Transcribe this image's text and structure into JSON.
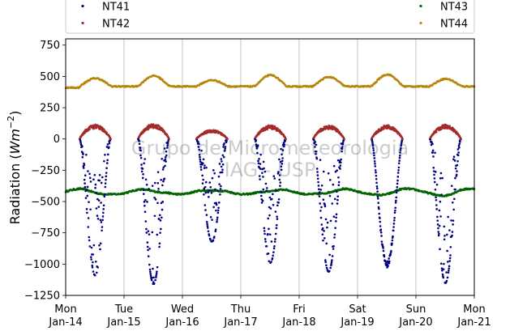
{
  "chart_data": {
    "type": "scatter",
    "ylabel": "Radiation (Wm⁻²)",
    "ylabel_parts": {
      "text": "Radiation (",
      "math": "Wm",
      "exp": "−2",
      "close": ")"
    },
    "ylim": [
      -1250,
      800
    ],
    "yticks": [
      -1250,
      -1000,
      -750,
      -500,
      -250,
      0,
      250,
      500,
      750
    ],
    "ytick_labels": [
      "−1250",
      "−1000",
      "−750",
      "−500",
      "−250",
      "0",
      "250",
      "500",
      "750"
    ],
    "xlim": [
      "2019-01-14",
      "2019-01-21"
    ],
    "xticks": [
      {
        "day": "Mon",
        "date": "Jan-14"
      },
      {
        "day": "Tue",
        "date": "Jan-15"
      },
      {
        "day": "Wed",
        "date": "Jan-16"
      },
      {
        "day": "Thu",
        "date": "Jan-17"
      },
      {
        "day": "Fri",
        "date": "Jan-18"
      },
      {
        "day": "Sat",
        "date": "Jan-19"
      },
      {
        "day": "Sun",
        "date": "Jan-20"
      },
      {
        "day": "Mon",
        "date": "Jan-21"
      }
    ],
    "grid": "x",
    "legend_placement": "top, outside",
    "watermark": [
      "Grupo de Micrometeorologia",
      "IAG - USP"
    ],
    "series": [
      {
        "name": "NT41",
        "color": "#000080",
        "kind": "daytime downward shortwave (negative)",
        "daily_minimum": [
          -1090,
          -1160,
          -820,
          -990,
          -1060,
          -1030,
          -1150
        ]
      },
      {
        "name": "NT42",
        "color": "#a52a2a",
        "kind": "daytime upward shortwave",
        "daily_maximum": [
          110,
          115,
          70,
          105,
          105,
          105,
          110
        ]
      },
      {
        "name": "NT43",
        "color": "#006400",
        "kind": "downward longwave (negative)",
        "mean": -420,
        "range": [
          -450,
          -380
        ]
      },
      {
        "name": "NT44",
        "color": "#b8860b",
        "kind": "upward longwave",
        "night": 420,
        "daily_maximum": [
          485,
          505,
          470,
          510,
          495,
          515,
          480
        ]
      }
    ]
  }
}
